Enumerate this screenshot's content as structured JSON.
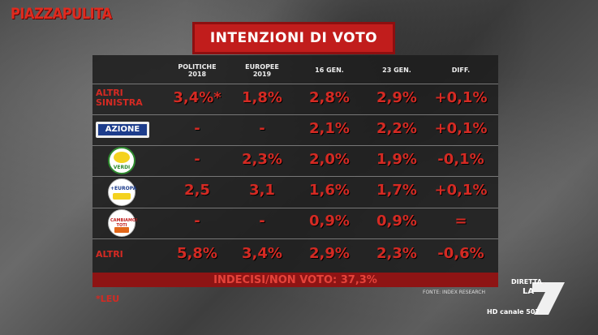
{
  "brand": "PIAZZAPULITA",
  "title": "INTENZIONI DI VOTO",
  "headers": [
    {
      "line1": "POLITICHE",
      "line2": "2018"
    },
    {
      "line1": "EUROPEE",
      "line2": "2019"
    },
    {
      "line1": "16 GEN.",
      "line2": ""
    },
    {
      "line1": "23 GEN.",
      "line2": ""
    },
    {
      "line1": "DIFF.",
      "line2": ""
    }
  ],
  "rows": [
    {
      "label": "ALTRI SINISTRA",
      "logo": "text",
      "values": [
        "3,4%*",
        "1,8%",
        "2,8%",
        "2,9%",
        "+0,1%"
      ]
    },
    {
      "label": "AZIONE",
      "logo": "azione-logo",
      "values": [
        "-",
        "-",
        "2,1%",
        "2,2%",
        "+0,1%"
      ]
    },
    {
      "label": "VERDI",
      "logo": "verdi-logo",
      "values": [
        "-",
        "2,3%",
        "2,0%",
        "1,9%",
        "-0,1%"
      ]
    },
    {
      "label": "+EUROPA",
      "logo": "europa-logo",
      "values": [
        "2,5",
        "3,1",
        "1,6%",
        "1,7%",
        "+0,1%"
      ]
    },
    {
      "label": "CAMBIAMO! TOTI",
      "logo": "cambiamo-logo",
      "values": [
        "-",
        "-",
        "0,9%",
        "0,9%",
        "="
      ]
    },
    {
      "label": "ALTRI",
      "logo": "text",
      "values": [
        "5,8%",
        "3,4%",
        "2,9%",
        "2,3%",
        "-0,6%"
      ]
    }
  ],
  "footer": "INDECISI/NON VOTO: 37,3%",
  "note": "*LEU",
  "source": "FONTE: INDEX RESEARCH",
  "channel": {
    "diretta": "DIRETTA",
    "la": "LA",
    "seven": "7",
    "hd": "HD canale 507"
  }
}
